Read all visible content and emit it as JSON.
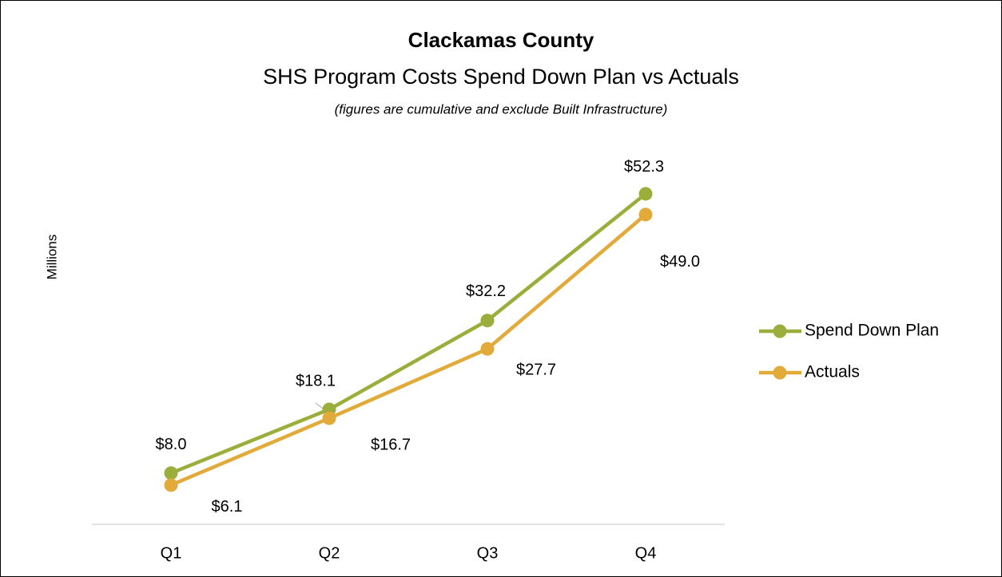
{
  "chart_data": {
    "type": "line",
    "title": "Clackamas County",
    "subtitle": "SHS Program Costs Spend Down Plan vs Actuals",
    "note": "(figures are cumulative and exclude Built Infrastructure)",
    "y_axis_label": "Millions",
    "categories": [
      "Q1",
      "Q2",
      "Q3",
      "Q4"
    ],
    "ylim": [
      0,
      60
    ],
    "legend": "right",
    "series": [
      {
        "name": "Spend Down Plan",
        "color": "#9bae3c",
        "values": [
          8.0,
          18.1,
          32.2,
          52.3
        ],
        "value_labels": [
          "$8.0",
          "$18.1",
          "$32.2",
          "$52.3"
        ]
      },
      {
        "name": "Actuals",
        "color": "#e2aa38",
        "values": [
          6.1,
          16.7,
          27.7,
          49.0
        ],
        "value_labels": [
          "$6.1",
          "$16.7",
          "$27.7",
          "$49.0"
        ]
      }
    ]
  }
}
